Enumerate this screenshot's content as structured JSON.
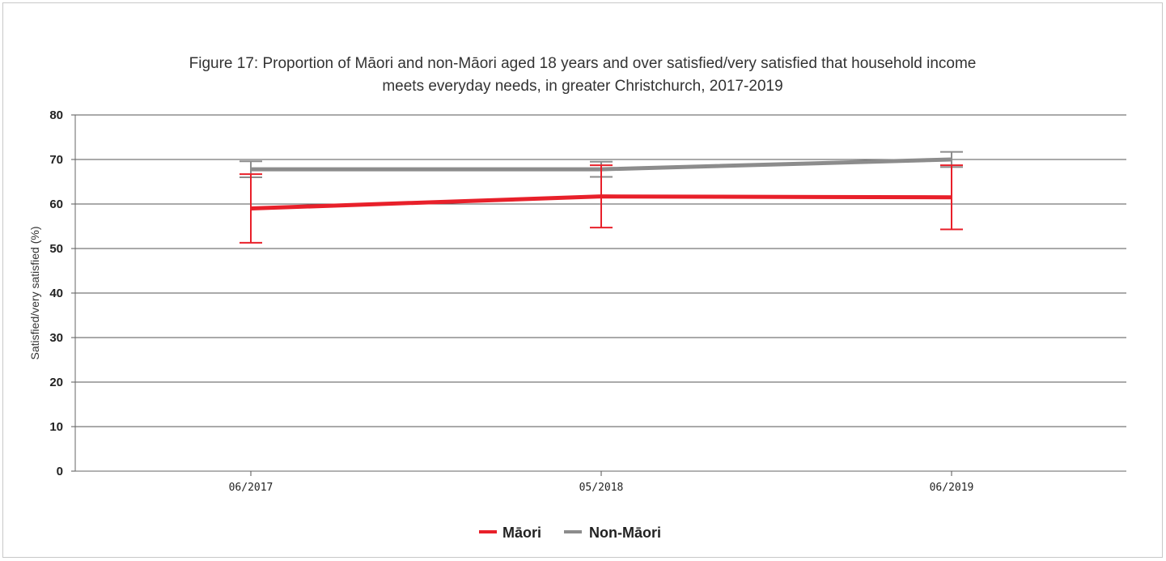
{
  "chart_data": {
    "type": "line",
    "title": "Figure 17: Proportion of Māori and non-Māori aged 18 years and over satisfied/very satisfied that household income meets everyday needs, in greater Christchurch, 2017-2019",
    "title_lines": [
      "Figure 17: Proportion of Māori and non-Māori aged 18 years and over satisfied/very satisfied that household income",
      "meets everyday needs, in greater Christchurch, 2017-2019"
    ],
    "xlabel": "",
    "ylabel": "Satisfied/very satisfied (%)",
    "categories": [
      "06/2017",
      "05/2018",
      "06/2019"
    ],
    "ylim": [
      0,
      80
    ],
    "yticks": [
      "0",
      "10",
      "20",
      "30",
      "40",
      "50",
      "60",
      "70",
      "80"
    ],
    "grid": true,
    "legend_position": "bottom",
    "series": [
      {
        "name": "Māori",
        "color": "#e8202a",
        "values": [
          59,
          61.7,
          61.5
        ],
        "error_low": [
          51.3,
          54.7,
          54.3
        ],
        "error_high": [
          66.7,
          68.7,
          68.7
        ]
      },
      {
        "name": "Non-Māori",
        "color": "#8c8c8c",
        "values": [
          67.8,
          67.8,
          70
        ],
        "error_low": [
          66,
          66.1,
          68.3
        ],
        "error_high": [
          69.6,
          69.5,
          71.7
        ]
      }
    ]
  }
}
